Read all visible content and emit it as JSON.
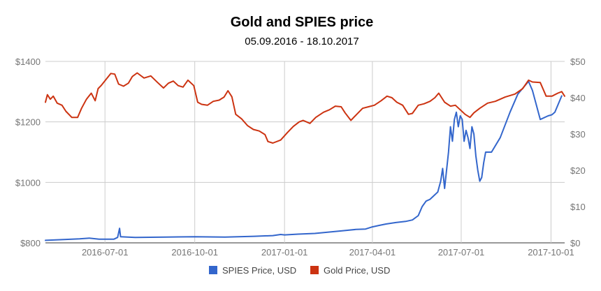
{
  "chart_data": {
    "type": "line",
    "title": "Gold and SPIES price",
    "subtitle": "05.09.2016 - 18.10.2017",
    "x_ticks": [
      "2016-07-01",
      "2016-10-01",
      "2017-01-01",
      "2017-04-01",
      "2017-07-01",
      "2017-10-01"
    ],
    "x_range": [
      "2016-05-01",
      "2017-10-15"
    ],
    "y_left": {
      "ticks": [
        "$800",
        "$1000",
        "$1200",
        "$1400"
      ],
      "range": [
        800,
        1400
      ]
    },
    "y_right": {
      "ticks": [
        "$0",
        "$10",
        "$20",
        "$30",
        "$40",
        "$50"
      ],
      "range": [
        0,
        50
      ]
    },
    "grid": true,
    "legend_position": "bottom",
    "series": [
      {
        "name": "SPIES Price, USD",
        "axis": "right",
        "color": "#3366cc",
        "points": [
          [
            "2016-05-01",
            0.7
          ],
          [
            "2016-05-20",
            0.9
          ],
          [
            "2016-06-05",
            1.1
          ],
          [
            "2016-06-15",
            1.3
          ],
          [
            "2016-06-25",
            1.0
          ],
          [
            "2016-07-10",
            1.0
          ],
          [
            "2016-07-14",
            1.5
          ],
          [
            "2016-07-16",
            4.0
          ],
          [
            "2016-07-17",
            1.7
          ],
          [
            "2016-08-01",
            1.5
          ],
          [
            "2016-09-01",
            1.6
          ],
          [
            "2016-10-01",
            1.7
          ],
          [
            "2016-11-01",
            1.6
          ],
          [
            "2016-12-01",
            1.8
          ],
          [
            "2016-12-20",
            2.0
          ],
          [
            "2016-12-28",
            2.3
          ],
          [
            "2017-01-01",
            2.2
          ],
          [
            "2017-01-15",
            2.4
          ],
          [
            "2017-02-01",
            2.6
          ],
          [
            "2017-03-01",
            3.3
          ],
          [
            "2017-03-15",
            3.7
          ],
          [
            "2017-03-25",
            3.8
          ],
          [
            "2017-04-01",
            4.4
          ],
          [
            "2017-04-08",
            4.8
          ],
          [
            "2017-04-15",
            5.2
          ],
          [
            "2017-04-25",
            5.6
          ],
          [
            "2017-05-05",
            5.9
          ],
          [
            "2017-05-12",
            6.3
          ],
          [
            "2017-05-18",
            7.5
          ],
          [
            "2017-05-22",
            10.0
          ],
          [
            "2017-05-26",
            11.5
          ],
          [
            "2017-05-30",
            12.0
          ],
          [
            "2017-06-03",
            13.0
          ],
          [
            "2017-06-07",
            14.0
          ],
          [
            "2017-06-10",
            17.0
          ],
          [
            "2017-06-12",
            20.5
          ],
          [
            "2017-06-14",
            15.0
          ],
          [
            "2017-06-16",
            20.0
          ],
          [
            "2017-06-18",
            25.0
          ],
          [
            "2017-06-20",
            32.0
          ],
          [
            "2017-06-22",
            28.0
          ],
          [
            "2017-06-24",
            34.0
          ],
          [
            "2017-06-26",
            36.0
          ],
          [
            "2017-06-28",
            32.0
          ],
          [
            "2017-06-30",
            35.0
          ],
          [
            "2017-07-02",
            34.0
          ],
          [
            "2017-07-04",
            28.0
          ],
          [
            "2017-07-06",
            31.0
          ],
          [
            "2017-07-08",
            29.0
          ],
          [
            "2017-07-10",
            26.0
          ],
          [
            "2017-07-12",
            32.0
          ],
          [
            "2017-07-14",
            30.0
          ],
          [
            "2017-07-16",
            24.0
          ],
          [
            "2017-07-18",
            20.0
          ],
          [
            "2017-07-20",
            17.0
          ],
          [
            "2017-07-22",
            18.0
          ],
          [
            "2017-07-24",
            22.0
          ],
          [
            "2017-07-26",
            25.0
          ],
          [
            "2017-08-01",
            25.0
          ],
          [
            "2017-08-10",
            29.0
          ],
          [
            "2017-08-20",
            36.0
          ],
          [
            "2017-08-28",
            41.0
          ],
          [
            "2017-09-08",
            44.5
          ],
          [
            "2017-09-12",
            42.0
          ],
          [
            "2017-09-15",
            39.0
          ],
          [
            "2017-09-20",
            34.0
          ],
          [
            "2017-09-28",
            35.0
          ],
          [
            "2017-10-02",
            35.3
          ],
          [
            "2017-10-05",
            36.0
          ],
          [
            "2017-10-12",
            40.5
          ]
        ]
      },
      {
        "name": "Gold Price, USD",
        "axis": "left",
        "color": "#cc3311",
        "points": [
          [
            "2016-05-01",
            1265
          ],
          [
            "2016-05-03",
            1290
          ],
          [
            "2016-05-06",
            1275
          ],
          [
            "2016-05-09",
            1285
          ],
          [
            "2016-05-13",
            1262
          ],
          [
            "2016-05-18",
            1255
          ],
          [
            "2016-05-22",
            1235
          ],
          [
            "2016-05-28",
            1215
          ],
          [
            "2016-06-03",
            1215
          ],
          [
            "2016-06-07",
            1245
          ],
          [
            "2016-06-12",
            1275
          ],
          [
            "2016-06-17",
            1295
          ],
          [
            "2016-06-21",
            1270
          ],
          [
            "2016-06-24",
            1310
          ],
          [
            "2016-06-27",
            1320
          ],
          [
            "2016-07-02",
            1340
          ],
          [
            "2016-07-07",
            1360
          ],
          [
            "2016-07-11",
            1358
          ],
          [
            "2016-07-15",
            1325
          ],
          [
            "2016-07-20",
            1318
          ],
          [
            "2016-07-25",
            1328
          ],
          [
            "2016-07-29",
            1350
          ],
          [
            "2016-08-03",
            1362
          ],
          [
            "2016-08-10",
            1345
          ],
          [
            "2016-08-17",
            1352
          ],
          [
            "2016-08-24",
            1330
          ],
          [
            "2016-08-30",
            1312
          ],
          [
            "2016-09-04",
            1328
          ],
          [
            "2016-09-09",
            1335
          ],
          [
            "2016-09-14",
            1320
          ],
          [
            "2016-09-19",
            1315
          ],
          [
            "2016-09-24",
            1338
          ],
          [
            "2016-09-30",
            1320
          ],
          [
            "2016-10-04",
            1265
          ],
          [
            "2016-10-08",
            1258
          ],
          [
            "2016-10-14",
            1255
          ],
          [
            "2016-10-20",
            1268
          ],
          [
            "2016-10-26",
            1272
          ],
          [
            "2016-10-31",
            1282
          ],
          [
            "2016-11-04",
            1303
          ],
          [
            "2016-11-08",
            1283
          ],
          [
            "2016-11-12",
            1225
          ],
          [
            "2016-11-18",
            1210
          ],
          [
            "2016-11-24",
            1188
          ],
          [
            "2016-11-30",
            1175
          ],
          [
            "2016-12-06",
            1170
          ],
          [
            "2016-12-12",
            1158
          ],
          [
            "2016-12-15",
            1135
          ],
          [
            "2016-12-20",
            1130
          ],
          [
            "2016-12-28",
            1140
          ],
          [
            "2017-01-04",
            1165
          ],
          [
            "2017-01-10",
            1185
          ],
          [
            "2017-01-16",
            1200
          ],
          [
            "2017-01-20",
            1205
          ],
          [
            "2017-01-27",
            1195
          ],
          [
            "2017-02-02",
            1215
          ],
          [
            "2017-02-10",
            1232
          ],
          [
            "2017-02-16",
            1240
          ],
          [
            "2017-02-22",
            1252
          ],
          [
            "2017-02-28",
            1250
          ],
          [
            "2017-03-04",
            1230
          ],
          [
            "2017-03-10",
            1205
          ],
          [
            "2017-03-16",
            1225
          ],
          [
            "2017-03-22",
            1245
          ],
          [
            "2017-03-28",
            1250
          ],
          [
            "2017-04-03",
            1255
          ],
          [
            "2017-04-10",
            1270
          ],
          [
            "2017-04-16",
            1285
          ],
          [
            "2017-04-21",
            1280
          ],
          [
            "2017-04-26",
            1265
          ],
          [
            "2017-05-02",
            1255
          ],
          [
            "2017-05-08",
            1225
          ],
          [
            "2017-05-12",
            1228
          ],
          [
            "2017-05-18",
            1255
          ],
          [
            "2017-05-24",
            1260
          ],
          [
            "2017-05-30",
            1268
          ],
          [
            "2017-06-04",
            1280
          ],
          [
            "2017-06-08",
            1295
          ],
          [
            "2017-06-14",
            1265
          ],
          [
            "2017-06-20",
            1252
          ],
          [
            "2017-06-25",
            1255
          ],
          [
            "2017-06-30",
            1240
          ],
          [
            "2017-07-05",
            1225
          ],
          [
            "2017-07-10",
            1215
          ],
          [
            "2017-07-14",
            1230
          ],
          [
            "2017-07-20",
            1245
          ],
          [
            "2017-07-28",
            1262
          ],
          [
            "2017-08-05",
            1268
          ],
          [
            "2017-08-15",
            1282
          ],
          [
            "2017-08-25",
            1292
          ],
          [
            "2017-09-02",
            1310
          ],
          [
            "2017-09-08",
            1338
          ],
          [
            "2017-09-12",
            1332
          ],
          [
            "2017-09-20",
            1330
          ],
          [
            "2017-09-26",
            1285
          ],
          [
            "2017-10-02",
            1285
          ],
          [
            "2017-10-08",
            1295
          ],
          [
            "2017-10-12",
            1300
          ],
          [
            "2017-10-15",
            1285
          ]
        ]
      }
    ]
  }
}
